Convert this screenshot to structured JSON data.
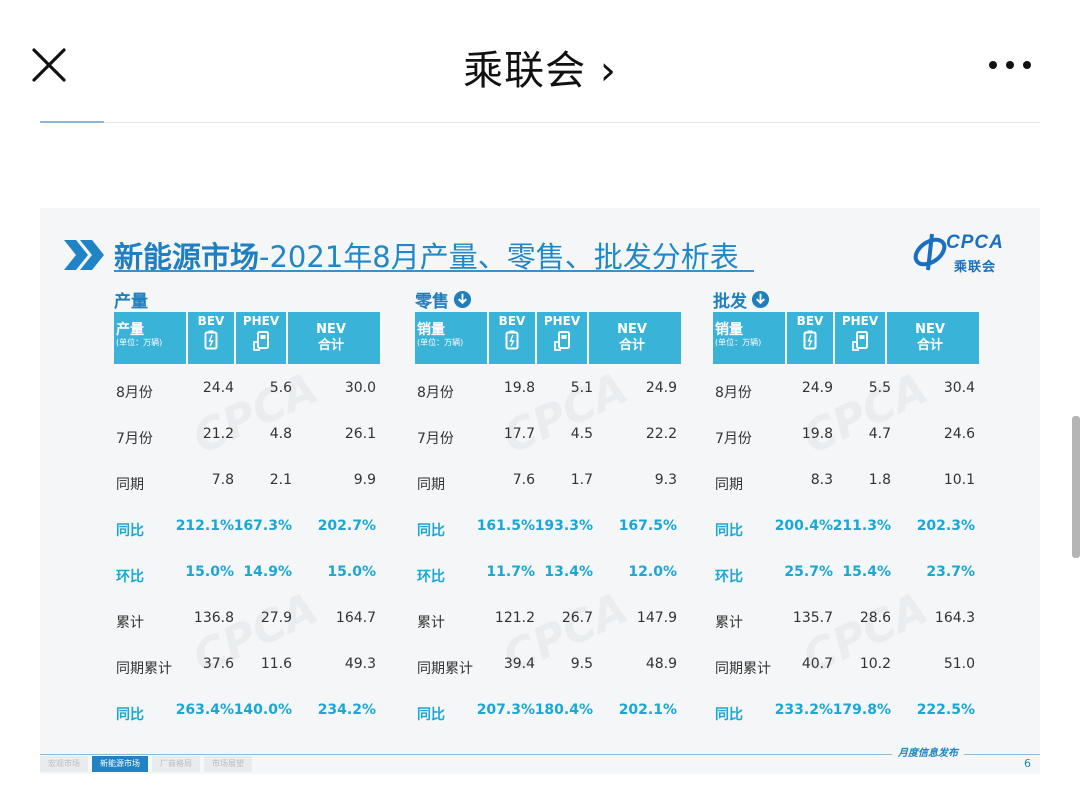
{
  "app": {
    "title": "乘联会",
    "title_chevron": "›"
  },
  "slide": {
    "title_bold": "新能源市场",
    "title_rest": "-2021年8月产量、零售、批发分析表",
    "logo_text": "CPCA",
    "logo_sub": "乘联会",
    "logo_small": "CPCA",
    "footer_tabs": [
      "宏观市场",
      "新能源市场",
      "厂商格局",
      "市场展望"
    ],
    "footer_active_index": 1,
    "footer_publish": "月度信息发布",
    "page_number": "6",
    "watermark": "CPCA"
  },
  "panels": [
    {
      "label": "产量",
      "has_down_icon": false,
      "header": {
        "first": "产量",
        "unit": "(单位：万辆)",
        "bev": "BEV",
        "phev": "PHEV",
        "nev1": "NEV",
        "nev2": "合计"
      },
      "rows": [
        [
          "8月份",
          "24.4",
          "5.6",
          "30.0"
        ],
        [
          "7月份",
          "21.2",
          "4.8",
          "26.1"
        ],
        [
          "同期",
          "7.8",
          "2.1",
          "9.9"
        ],
        [
          "同比",
          "212.1%",
          "167.3%",
          "202.7%"
        ],
        [
          "环比",
          "15.0%",
          "14.9%",
          "15.0%"
        ],
        [
          "累计",
          "136.8",
          "27.9",
          "164.7"
        ],
        [
          "同期累计",
          "37.6",
          "11.6",
          "49.3"
        ],
        [
          "同比",
          "263.4%",
          "140.0%",
          "234.2%"
        ]
      ]
    },
    {
      "label": "零售",
      "has_down_icon": true,
      "header": {
        "first": "销量",
        "unit": "(单位：万辆)",
        "bev": "BEV",
        "phev": "PHEV",
        "nev1": "NEV",
        "nev2": "合计"
      },
      "rows": [
        [
          "8月份",
          "19.8",
          "5.1",
          "24.9"
        ],
        [
          "7月份",
          "17.7",
          "4.5",
          "22.2"
        ],
        [
          "同期",
          "7.6",
          "1.7",
          "9.3"
        ],
        [
          "同比",
          "161.5%",
          "193.3%",
          "167.5%"
        ],
        [
          "环比",
          "11.7%",
          "13.4%",
          "12.0%"
        ],
        [
          "累计",
          "121.2",
          "26.7",
          "147.9"
        ],
        [
          "同期累计",
          "39.4",
          "9.5",
          "48.9"
        ],
        [
          "同比",
          "207.3%",
          "180.4%",
          "202.1%"
        ]
      ]
    },
    {
      "label": "批发",
      "has_down_icon": true,
      "header": {
        "first": "销量",
        "unit": "(单位：万辆)",
        "bev": "BEV",
        "phev": "PHEV",
        "nev1": "NEV",
        "nev2": "合计"
      },
      "rows": [
        [
          "8月份",
          "24.9",
          "5.5",
          "30.4"
        ],
        [
          "7月份",
          "19.8",
          "4.7",
          "24.6"
        ],
        [
          "同期",
          "8.3",
          "1.8",
          "10.1"
        ],
        [
          "同比",
          "200.4%",
          "211.3%",
          "202.3%"
        ],
        [
          "环比",
          "25.7%",
          "15.4%",
          "23.7%"
        ],
        [
          "累计",
          "135.7",
          "28.6",
          "164.3"
        ],
        [
          "同期累计",
          "40.7",
          "10.2",
          "51.0"
        ],
        [
          "同比",
          "233.2%",
          "179.8%",
          "222.5%"
        ]
      ]
    }
  ],
  "highlight_rows": [
    3,
    4,
    7
  ],
  "colors": {
    "accent": "#1f88c8",
    "header_fill": "#3ab3d8",
    "highlight_text": "#1aa7d6",
    "slide_bg": "#f4f6f7"
  }
}
